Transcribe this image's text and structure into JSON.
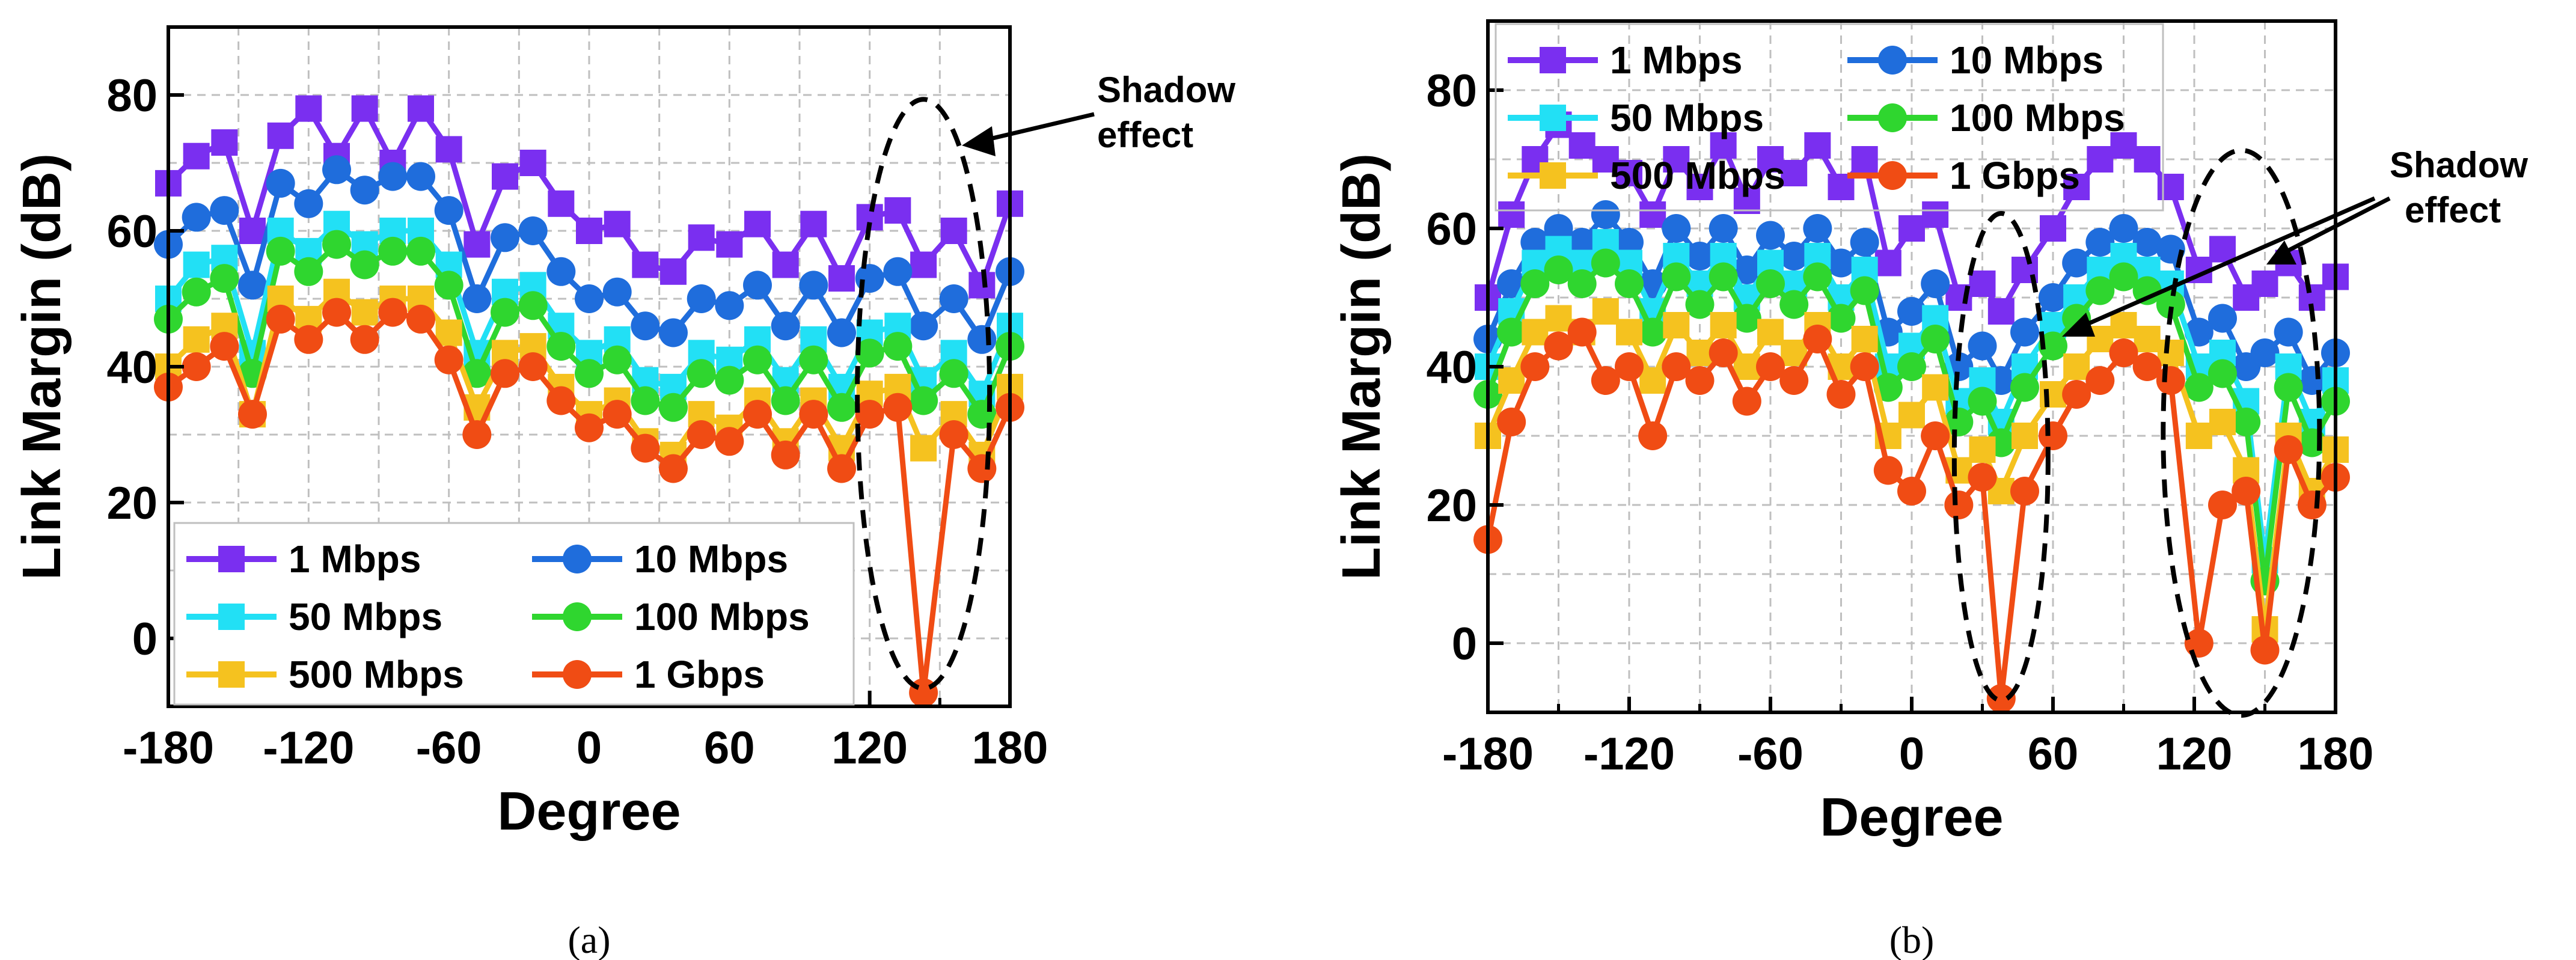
{
  "chart_data": [
    {
      "type": "line",
      "panel_label": "(a)",
      "xlabel": "Degree",
      "ylabel": "Link Margin (dB)",
      "xlim": [
        -180,
        180
      ],
      "ylim": [
        -10,
        90
      ],
      "xticks": [
        -180,
        -120,
        -60,
        0,
        60,
        120,
        180
      ],
      "yticks": [
        0,
        20,
        40,
        60,
        80
      ],
      "grid": true,
      "legend_position": "bottom-left",
      "annotation": {
        "text_line1": "Shadow",
        "text_line2": "effect",
        "ellipse_center_deg": 143,
        "ellipse_center_db": 36
      },
      "x": [
        -180,
        -168,
        -156,
        -144,
        -132,
        -120,
        -108,
        -96,
        -84,
        -72,
        -60,
        -48,
        -36,
        -24,
        -12,
        0,
        12,
        24,
        36,
        48,
        60,
        72,
        84,
        96,
        108,
        120,
        132,
        143,
        156,
        168,
        180
      ],
      "series": [
        {
          "name": "1 Mbps",
          "color": "#7a2ff0",
          "marker": "square",
          "values": [
            67,
            71,
            73,
            60,
            74,
            78,
            71,
            78,
            70,
            78,
            72,
            58,
            68,
            70,
            64,
            60,
            61,
            55,
            54,
            59,
            58,
            61,
            55,
            61,
            53,
            62,
            63,
            55,
            60,
            52,
            64
          ]
        },
        {
          "name": "10 Mbps",
          "color": "#1f6ddc",
          "marker": "circle",
          "values": [
            58,
            62,
            63,
            52,
            67,
            64,
            69,
            66,
            68,
            68,
            63,
            50,
            59,
            60,
            54,
            50,
            51,
            46,
            45,
            50,
            49,
            52,
            46,
            52,
            45,
            53,
            54,
            46,
            50,
            44,
            54
          ]
        },
        {
          "name": "50 Mbps",
          "color": "#22e0f5",
          "marker": "square",
          "values": [
            50,
            55,
            56,
            42,
            60,
            57,
            61,
            58,
            60,
            60,
            55,
            42,
            51,
            52,
            46,
            42,
            44,
            38,
            37,
            42,
            41,
            44,
            38,
            44,
            37,
            45,
            46,
            38,
            42,
            36,
            46
          ]
        },
        {
          "name": "100 Mbps",
          "color": "#2fd62f",
          "marker": "circle",
          "values": [
            47,
            51,
            53,
            39,
            57,
            54,
            58,
            55,
            57,
            57,
            52,
            39,
            48,
            49,
            43,
            39,
            41,
            35,
            34,
            39,
            38,
            41,
            35,
            41,
            34,
            42,
            43,
            35,
            39,
            33,
            43
          ]
        },
        {
          "name": "500 Mbps",
          "color": "#f5c21f",
          "marker": "square",
          "values": [
            40,
            44,
            46,
            33,
            50,
            47,
            51,
            48,
            50,
            50,
            45,
            34,
            42,
            43,
            37,
            33,
            35,
            29,
            27,
            33,
            31,
            35,
            29,
            35,
            28,
            36,
            37,
            28,
            33,
            27,
            37
          ]
        },
        {
          "name": "1 Gbps",
          "color": "#f04c14",
          "marker": "circle",
          "values": [
            37,
            40,
            43,
            33,
            47,
            44,
            48,
            44,
            48,
            47,
            41,
            30,
            39,
            40,
            35,
            31,
            33,
            28,
            25,
            30,
            29,
            33,
            27,
            33,
            25,
            33,
            34,
            -8,
            30,
            25,
            34
          ]
        }
      ],
      "legend_labels": [
        "1 Mbps",
        "10 Mbps",
        "50 Mbps",
        "100 Mbps",
        "500 Mbps",
        "1 Gbps"
      ]
    },
    {
      "type": "line",
      "panel_label": "(b)",
      "xlabel": "Degree",
      "ylabel": "Link Margin (dB)",
      "xlim": [
        -180,
        180
      ],
      "ylim": [
        -10,
        90
      ],
      "xticks": [
        -180,
        -120,
        -60,
        0,
        60,
        120,
        180
      ],
      "yticks": [
        0,
        20,
        40,
        60,
        80
      ],
      "grid": true,
      "legend_position": "top-left",
      "annotation": {
        "text_line1": "Shadow",
        "text_line2": "effect",
        "ellipse1_center_deg": 38,
        "ellipse2_center_deg": 140
      },
      "x": [
        -180,
        -170,
        -160,
        -150,
        -140,
        -130,
        -120,
        -110,
        -100,
        -90,
        -80,
        -70,
        -60,
        -50,
        -40,
        -30,
        -20,
        -10,
        0,
        10,
        20,
        30,
        38,
        48,
        60,
        70,
        80,
        90,
        100,
        110,
        122,
        132,
        142,
        150,
        160,
        170,
        180
      ],
      "series": [
        {
          "name": "1 Mbps",
          "color": "#7a2ff0",
          "marker": "square",
          "values": [
            50,
            62,
            70,
            75,
            72,
            70,
            68,
            62,
            70,
            66,
            72,
            64,
            70,
            68,
            72,
            66,
            70,
            55,
            60,
            62,
            50,
            52,
            48,
            54,
            60,
            66,
            70,
            72,
            70,
            66,
            54,
            57,
            50,
            52,
            55,
            50,
            53
          ]
        },
        {
          "name": "10 Mbps",
          "color": "#1f6ddc",
          "marker": "circle",
          "values": [
            44,
            52,
            58,
            60,
            58,
            62,
            58,
            52,
            60,
            56,
            60,
            54,
            59,
            56,
            60,
            55,
            58,
            45,
            48,
            52,
            40,
            43,
            38,
            45,
            50,
            55,
            58,
            60,
            58,
            57,
            45,
            47,
            40,
            42,
            45,
            38,
            42
          ]
        },
        {
          "name": "50 Mbps",
          "color": "#22e0f5",
          "marker": "square",
          "values": [
            40,
            48,
            55,
            57,
            55,
            58,
            55,
            48,
            56,
            52,
            56,
            50,
            55,
            52,
            56,
            50,
            54,
            40,
            43,
            47,
            35,
            38,
            32,
            40,
            46,
            50,
            54,
            56,
            54,
            52,
            40,
            42,
            35,
            12,
            40,
            32,
            38
          ]
        },
        {
          "name": "100 Mbps",
          "color": "#2fd62f",
          "marker": "circle",
          "values": [
            36,
            45,
            52,
            54,
            52,
            55,
            52,
            45,
            53,
            49,
            53,
            47,
            52,
            49,
            53,
            47,
            51,
            37,
            40,
            44,
            32,
            35,
            29,
            37,
            43,
            47,
            51,
            53,
            51,
            49,
            37,
            39,
            32,
            9,
            37,
            29,
            35
          ]
        },
        {
          "name": "500 Mbps",
          "color": "#f5c21f",
          "marker": "square",
          "values": [
            30,
            38,
            45,
            47,
            45,
            48,
            45,
            38,
            46,
            42,
            46,
            40,
            45,
            42,
            46,
            40,
            44,
            30,
            33,
            37,
            25,
            28,
            22,
            30,
            36,
            40,
            44,
            46,
            44,
            42,
            30,
            32,
            25,
            2,
            30,
            22,
            28
          ]
        },
        {
          "name": "1 Gbps",
          "color": "#f04c14",
          "marker": "circle",
          "values": [
            15,
            32,
            40,
            43,
            45,
            38,
            40,
            30,
            40,
            38,
            42,
            35,
            40,
            38,
            44,
            36,
            40,
            25,
            22,
            30,
            20,
            24,
            -8,
            22,
            30,
            36,
            38,
            42,
            40,
            38,
            0,
            20,
            22,
            -1,
            28,
            20,
            24
          ]
        }
      ],
      "legend_labels": [
        "1 Mbps",
        "10 Mbps",
        "50 Mbps",
        "100 Mbps",
        "500 Mbps",
        "1 Gbps"
      ]
    }
  ]
}
